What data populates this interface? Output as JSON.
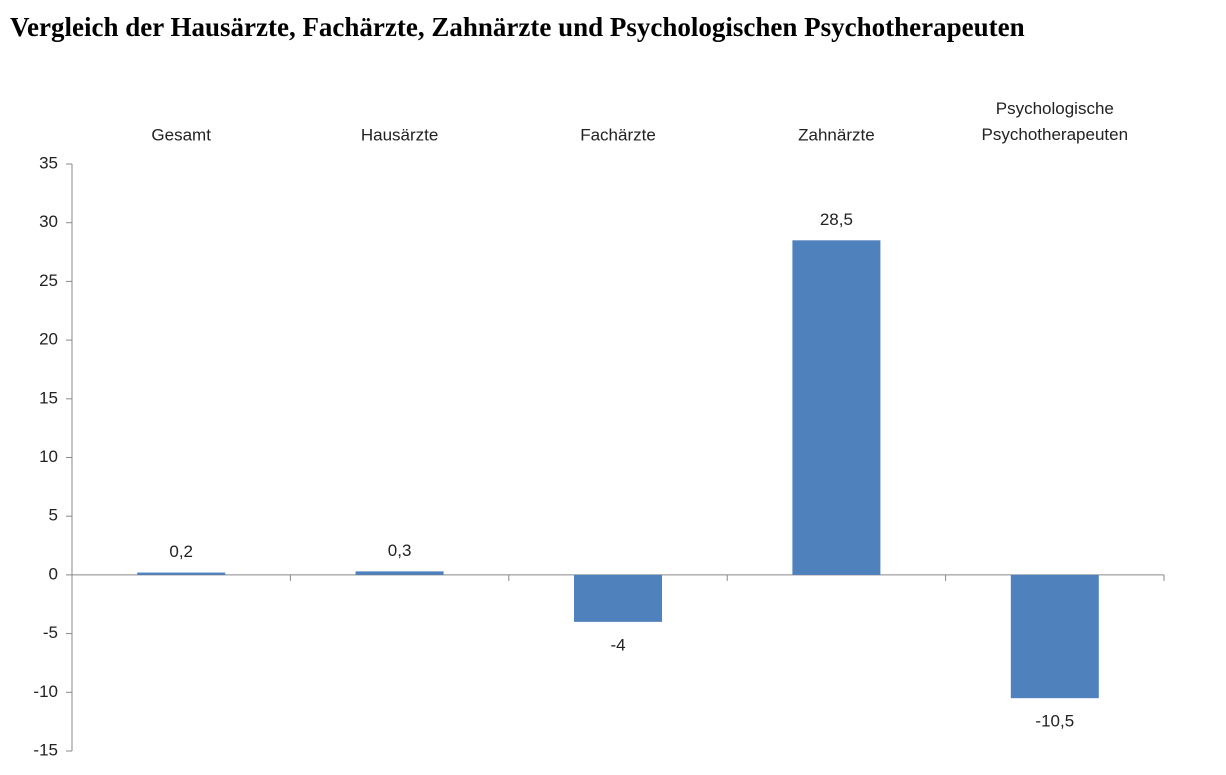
{
  "chart_data": {
    "type": "bar",
    "title": "Vergleich der Hausärzte, Fachärzte, Zahnärzte und Psychologischen Psychotherapeuten",
    "categories": [
      "Gesamt",
      "Hausärzte",
      "Fachärzte",
      "Zahnärzte",
      "Psychologische Psychotherapeuten"
    ],
    "values": [
      0.2,
      0.3,
      -4,
      28.5,
      -10.5
    ],
    "value_labels": [
      "0,2",
      "0,3",
      "-4",
      "28,5",
      "-10,5"
    ],
    "color": "#4f81bd",
    "ylim": [
      -15,
      35
    ],
    "yticks": [
      -15,
      -10,
      -5,
      0,
      5,
      10,
      15,
      20,
      25,
      30,
      35
    ],
    "grid": false
  }
}
